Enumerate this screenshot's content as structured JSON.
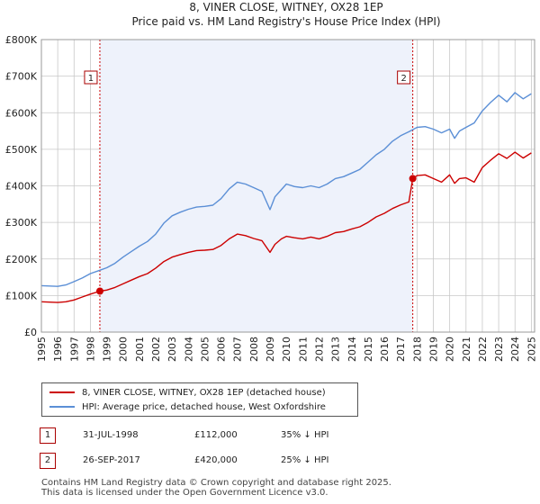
{
  "chart_data": {
    "type": "line",
    "title": "8, VINER CLOSE, WITNEY, OX28 1EP",
    "subtitle": "Price paid vs. HM Land Registry's House Price Index (HPI)",
    "xlabel": "",
    "ylabel": "",
    "xlim": [
      1995.0,
      2025.2
    ],
    "ylim": [
      0,
      800000
    ],
    "y_ticks": [
      0,
      100000,
      200000,
      300000,
      400000,
      500000,
      600000,
      700000,
      800000
    ],
    "y_tick_labels": [
      "£0",
      "£100K",
      "£200K",
      "£300K",
      "£400K",
      "£500K",
      "£600K",
      "£700K",
      "£800K"
    ],
    "x_ticks": [
      1995,
      1996,
      1997,
      1998,
      1999,
      2000,
      2001,
      2002,
      2003,
      2004,
      2005,
      2006,
      2007,
      2008,
      2009,
      2010,
      2011,
      2012,
      2013,
      2014,
      2015,
      2016,
      2017,
      2018,
      2019,
      2020,
      2021,
      2022,
      2023,
      2024,
      2025
    ],
    "x_tick_labels": [
      "1995",
      "1996",
      "1997",
      "1998",
      "1999",
      "2000",
      "2001",
      "2002",
      "2003",
      "2004",
      "2005",
      "2006",
      "2007",
      "2008",
      "2009",
      "2010",
      "2011",
      "2012",
      "2013",
      "2014",
      "2015",
      "2016",
      "2017",
      "2018",
      "2019",
      "2020",
      "2021",
      "2022",
      "2023",
      "2024",
      "2025"
    ],
    "grid": true,
    "shaded_region": {
      "from": 1998.58,
      "to": 2017.74
    },
    "series": [
      {
        "name": "8, VINER CLOSE, WITNEY, OX28 1EP (detached house)",
        "color": "#cc0000",
        "x": [
          1995.0,
          1995.5,
          1996.0,
          1996.5,
          1997.0,
          1997.5,
          1998.0,
          1998.58,
          1999.0,
          1999.5,
          2000.0,
          2000.5,
          2001.0,
          2001.5,
          2002.0,
          2002.5,
          2003.0,
          2003.5,
          2004.0,
          2004.5,
          2005.0,
          2005.5,
          2006.0,
          2006.5,
          2007.0,
          2007.5,
          2008.0,
          2008.5,
          2009.0,
          2009.3,
          2009.7,
          2010.0,
          2010.5,
          2011.0,
          2011.5,
          2012.0,
          2012.5,
          2013.0,
          2013.5,
          2014.0,
          2014.5,
          2015.0,
          2015.5,
          2016.0,
          2016.5,
          2017.0,
          2017.5,
          2017.74,
          2018.0,
          2018.5,
          2019.0,
          2019.5,
          2020.0,
          2020.3,
          2020.6,
          2021.0,
          2021.5,
          2022.0,
          2022.5,
          2023.0,
          2023.5,
          2024.0,
          2024.5,
          2025.0
        ],
        "values": [
          83000,
          82000,
          81000,
          83000,
          88000,
          96000,
          104000,
          112000,
          115000,
          122000,
          132000,
          142000,
          152000,
          160000,
          175000,
          193000,
          205000,
          212000,
          218000,
          223000,
          224000,
          226000,
          237000,
          255000,
          268000,
          264000,
          256000,
          250000,
          218000,
          240000,
          255000,
          262000,
          258000,
          255000,
          260000,
          255000,
          262000,
          272000,
          275000,
          282000,
          288000,
          300000,
          315000,
          325000,
          338000,
          348000,
          356000,
          420000,
          428000,
          430000,
          420000,
          410000,
          430000,
          407000,
          420000,
          422000,
          410000,
          450000,
          470000,
          488000,
          475000,
          492000,
          476000,
          490000
        ]
      },
      {
        "name": "HPI: Average price, detached house, West Oxfordshire",
        "color": "#5b8fd6",
        "x": [
          1995.0,
          1995.5,
          1996.0,
          1996.5,
          1997.0,
          1997.5,
          1998.0,
          1998.5,
          1999.0,
          1999.5,
          2000.0,
          2000.5,
          2001.0,
          2001.5,
          2002.0,
          2002.5,
          2003.0,
          2003.5,
          2004.0,
          2004.5,
          2005.0,
          2005.5,
          2006.0,
          2006.5,
          2007.0,
          2007.5,
          2008.0,
          2008.5,
          2009.0,
          2009.3,
          2009.7,
          2010.0,
          2010.5,
          2011.0,
          2011.5,
          2012.0,
          2012.5,
          2013.0,
          2013.5,
          2014.0,
          2014.5,
          2015.0,
          2015.5,
          2016.0,
          2016.5,
          2017.0,
          2017.5,
          2018.0,
          2018.5,
          2019.0,
          2019.5,
          2020.0,
          2020.3,
          2020.6,
          2021.0,
          2021.5,
          2022.0,
          2022.5,
          2023.0,
          2023.5,
          2024.0,
          2024.5,
          2025.0
        ],
        "values": [
          127000,
          126000,
          125000,
          129000,
          138000,
          148000,
          160000,
          168000,
          176000,
          188000,
          205000,
          220000,
          235000,
          248000,
          268000,
          298000,
          318000,
          328000,
          336000,
          342000,
          344000,
          347000,
          365000,
          392000,
          410000,
          405000,
          395000,
          385000,
          335000,
          370000,
          390000,
          405000,
          398000,
          395000,
          400000,
          395000,
          405000,
          420000,
          425000,
          435000,
          445000,
          465000,
          485000,
          500000,
          522000,
          537000,
          548000,
          560000,
          562000,
          555000,
          545000,
          555000,
          530000,
          550000,
          560000,
          572000,
          605000,
          628000,
          648000,
          630000,
          655000,
          638000,
          652000
        ]
      }
    ],
    "sale_markers": [
      {
        "label": "1",
        "x": 1998.58,
        "value": 112000
      },
      {
        "label": "2",
        "x": 2017.74,
        "value": 420000
      }
    ]
  },
  "legend": {
    "items": [
      {
        "label": "8, VINER CLOSE, WITNEY, OX28 1EP (detached house)",
        "color": "#cc0000"
      },
      {
        "label": "HPI: Average price, detached house, West Oxfordshire",
        "color": "#5b8fd6"
      }
    ]
  },
  "sales_table": [
    {
      "num": "1",
      "date": "31-JUL-1998",
      "price": "£112,000",
      "hpi": "35% ↓ HPI"
    },
    {
      "num": "2",
      "date": "26-SEP-2017",
      "price": "£420,000",
      "hpi": "25% ↓ HPI"
    }
  ],
  "footer": {
    "line1": "Contains HM Land Registry data © Crown copyright and database right 2025.",
    "line2": "This data is licensed under the Open Government Licence v3.0."
  },
  "colors": {
    "property": "#cc0000",
    "hpi": "#5b8fd6",
    "plot_bg": "#eef2fb",
    "grid": "#c8c8c8",
    "marker_border": "#aa0000"
  }
}
